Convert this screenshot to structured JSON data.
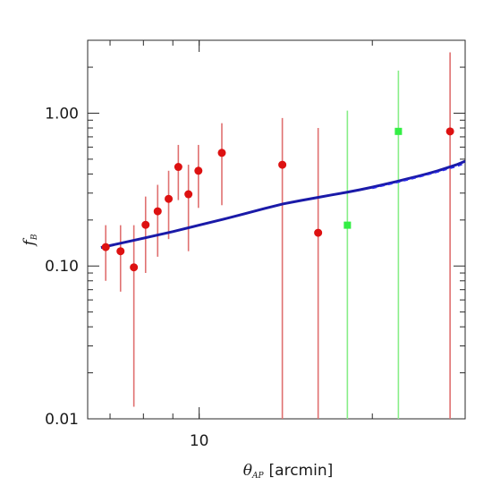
{
  "chart_data": {
    "type": "scatter",
    "xscale": "log",
    "yscale": "log",
    "xlim": [
      6.4,
      29.0
    ],
    "ylim": [
      0.01,
      3.0
    ],
    "xticks": [
      {
        "value": 10,
        "label": "10"
      }
    ],
    "yticks": [
      {
        "value": 0.01,
        "label": "0.01"
      },
      {
        "value": 0.1,
        "label": "0.10"
      },
      {
        "value": 1.0,
        "label": "1.00"
      }
    ],
    "xlabel": {
      "symbol": "θ",
      "sub": "AP",
      "unit": "[arcmin]"
    },
    "ylabel": {
      "symbol": "f",
      "sub": "B"
    },
    "grid": false,
    "legend": "none",
    "series": [
      {
        "color": "#dd1111",
        "errcolor": "#e07070",
        "marker": "circle",
        "points": [
          {
            "x": 6.88,
            "y": 0.133,
            "lo": 0.08,
            "hi": 0.185
          },
          {
            "x": 7.3,
            "y": 0.125,
            "lo": 0.068,
            "hi": 0.185
          },
          {
            "x": 7.7,
            "y": 0.098,
            "lo": 0.012,
            "hi": 0.185
          },
          {
            "x": 8.07,
            "y": 0.186,
            "lo": 0.09,
            "hi": 0.285
          },
          {
            "x": 8.47,
            "y": 0.228,
            "lo": 0.115,
            "hi": 0.34
          },
          {
            "x": 8.85,
            "y": 0.275,
            "lo": 0.15,
            "hi": 0.42
          },
          {
            "x": 9.2,
            "y": 0.445,
            "lo": 0.27,
            "hi": 0.62
          },
          {
            "x": 9.58,
            "y": 0.295,
            "lo": 0.125,
            "hi": 0.46
          },
          {
            "x": 9.97,
            "y": 0.42,
            "lo": 0.24,
            "hi": 0.62
          },
          {
            "x": 10.95,
            "y": 0.55,
            "lo": 0.25,
            "hi": 0.86
          },
          {
            "x": 13.95,
            "y": 0.46,
            "lo": 0.01,
            "hi": 0.93
          },
          {
            "x": 16.1,
            "y": 0.165,
            "lo": 0.01,
            "hi": 0.8
          },
          {
            "x": 27.3,
            "y": 0.76,
            "lo": 0.01,
            "hi": 2.5
          }
        ]
      },
      {
        "color": "#33ee44",
        "errcolor": "#88ee88",
        "marker": "square",
        "points": [
          {
            "x": 18.1,
            "y": 0.185,
            "lo": 0.01,
            "hi": 1.04
          },
          {
            "x": 22.2,
            "y": 0.76,
            "lo": 0.01,
            "hi": 1.9
          }
        ]
      }
    ],
    "model_curve": {
      "color": "#1a1aa8",
      "x": [
        6.75,
        8.0,
        9.0,
        10.0,
        11.0,
        12.0,
        13.0,
        14.0,
        15.0,
        16.0,
        17.0,
        18.0,
        19.0,
        20.0,
        21.0,
        22.0,
        23.0,
        24.0,
        25.0,
        26.0,
        27.0,
        28.0,
        29.0
      ],
      "y": [
        0.132,
        0.152,
        0.168,
        0.185,
        0.202,
        0.22,
        0.238,
        0.255,
        0.268,
        0.28,
        0.292,
        0.303,
        0.315,
        0.328,
        0.342,
        0.357,
        0.372,
        0.387,
        0.403,
        0.42,
        0.44,
        0.46,
        0.485
      ]
    },
    "model_curve_dashed": {
      "color": "#2a2aee",
      "x": [
        20.0,
        22.0,
        24.0,
        26.0,
        28.0,
        29.0
      ],
      "y": [
        0.322,
        0.35,
        0.38,
        0.412,
        0.447,
        0.47
      ]
    }
  }
}
